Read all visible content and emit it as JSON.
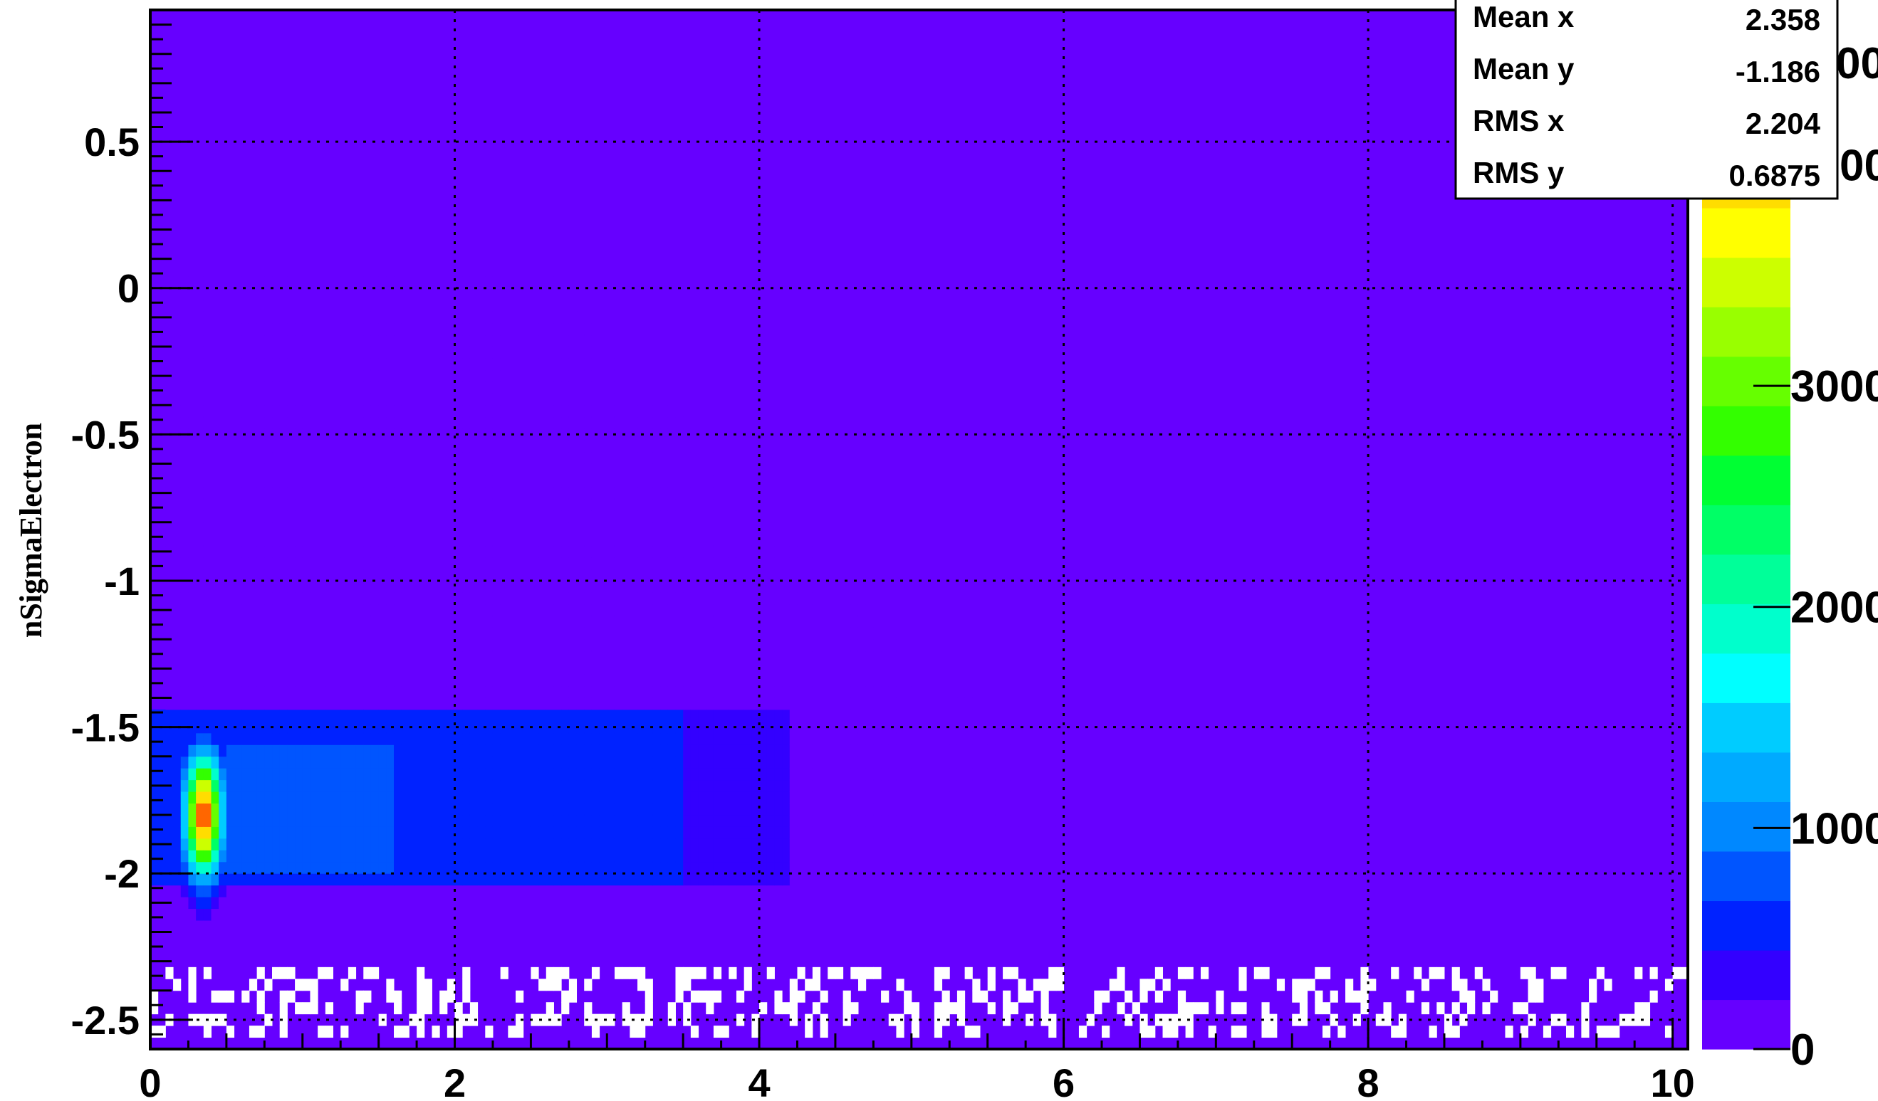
{
  "chart_data": {
    "type": "heatmap",
    "title": "",
    "xlabel": "",
    "ylabel": "nSigmaElectron",
    "xlim": [
      0,
      10.1
    ],
    "ylim": [
      -2.6,
      0.95
    ],
    "grid": true,
    "x_ticks": [
      "0",
      "2",
      "4",
      "6",
      "8",
      "10"
    ],
    "x_tick_values": [
      0,
      2,
      4,
      6,
      8,
      10
    ],
    "y_ticks": [
      "0.5",
      "0",
      "-0.5",
      "-1",
      "-1.5",
      "-2",
      "-2.5"
    ],
    "y_tick_values": [
      0.5,
      0,
      -0.5,
      -1,
      -1.5,
      -2,
      -2.5
    ],
    "colorbar": {
      "ticks": [
        "0",
        "1000",
        "2000",
        "3000",
        "4000"
      ],
      "tick_values": [
        0,
        1000,
        2000,
        3000,
        4000
      ],
      "top_label_partial": "00",
      "max": 4700,
      "colors": [
        "#6600ff",
        "#3300ff",
        "#0022ff",
        "#0055ff",
        "#0088ff",
        "#00aaff",
        "#00ccff",
        "#00ffff",
        "#00ffcc",
        "#00ff99",
        "#00ff66",
        "#00ff33",
        "#33ff00",
        "#66ff00",
        "#99ff00",
        "#ccff00",
        "#ffff00",
        "#ffdd00",
        "#ffaa00",
        "#ff6600",
        "#ff0000"
      ]
    },
    "background_color": "#6600ff",
    "stats": [
      {
        "label": "Mean x",
        "value": "2.358"
      },
      {
        "label": "Mean y",
        "value": "-1.186"
      },
      {
        "label": "RMS x",
        "value": "2.204"
      },
      {
        "label": "RMS y",
        "value": "0.6875"
      }
    ],
    "density_profile": {
      "band_center_y": -1.8,
      "peak_x": 0.35,
      "peak_count": 4600
    }
  }
}
